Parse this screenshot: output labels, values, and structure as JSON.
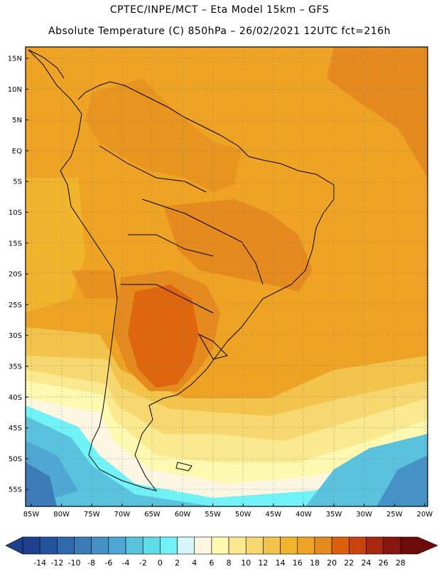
{
  "header": {
    "line1": "CPTEC/INPE/MCT –  Eta Model 15km – GFS",
    "line2": "Absolute Temperature (C) 850hPa – 26/02/2021 12UTC fct=216h"
  },
  "axes": {
    "lat_labels": [
      "15N",
      "10N",
      "5N",
      "EQ",
      "5S",
      "10S",
      "15S",
      "20S",
      "25S",
      "30S",
      "35S",
      "40S",
      "45S",
      "50S",
      "55S"
    ],
    "lon_labels": [
      "85W",
      "80W",
      "75W",
      "70W",
      "65W",
      "60W",
      "55W",
      "50W",
      "45W",
      "40W",
      "35W",
      "30W",
      "25W",
      "20W"
    ]
  },
  "colorbar": {
    "labels": [
      "-14",
      "-12",
      "-10",
      "-8",
      "-6",
      "-4",
      "-2",
      "0",
      "2",
      "4",
      "6",
      "8",
      "10",
      "12",
      "14",
      "16",
      "18",
      "20",
      "22",
      "24",
      "26",
      "28"
    ],
    "colors": [
      "#1f3f8f",
      "#24549e",
      "#2f68ad",
      "#3a7bb8",
      "#4592c6",
      "#4fa8d4",
      "#5ac2dd",
      "#60dbe8",
      "#70f2f6",
      "#d6f6fb",
      "#fdf6e2",
      "#fdf9b0",
      "#fbe98f",
      "#f7d870",
      "#f3c44b",
      "#f0b52c",
      "#eea324",
      "#e48a1e",
      "#dc5f0c",
      "#c9430f",
      "#a8270f",
      "#87160f",
      "#6d0b0b"
    ]
  },
  "legend_colors": {
    "ocean_south_cold": "#5ac2dd",
    "warm_default": "#eea324",
    "land_warm": "#e48a1e",
    "hot_core": "#dc5f0c"
  }
}
